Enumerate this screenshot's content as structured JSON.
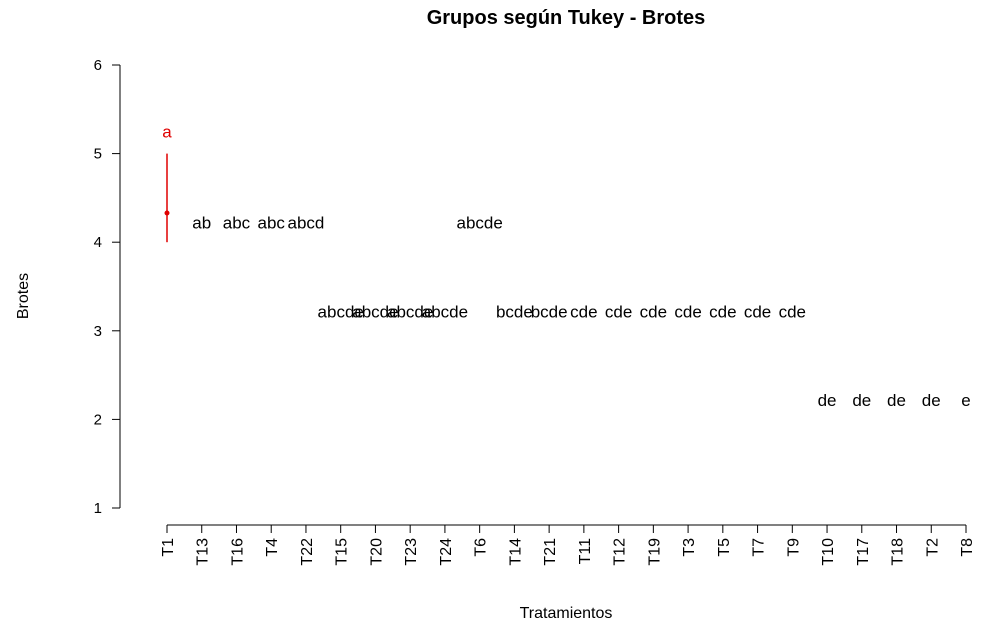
{
  "chart_data": {
    "type": "tukey-groups",
    "title": "Grupos según Tukey - Brotes",
    "x_label": "Tratamientos",
    "y_label": "Brotes",
    "categories": [
      "T1",
      "T13",
      "T16",
      "T4",
      "T22",
      "T15",
      "T20",
      "T23",
      "T24",
      "T6",
      "T14",
      "T21",
      "T11",
      "T12",
      "T19",
      "T3",
      "T5",
      "T7",
      "T9",
      "T10",
      "T17",
      "T18",
      "T2",
      "T8"
    ],
    "means": [
      4.33,
      null,
      null,
      null,
      null,
      null,
      null,
      null,
      null,
      null,
      null,
      null,
      null,
      null,
      null,
      null,
      null,
      null,
      null,
      null,
      null,
      null,
      null,
      null
    ],
    "lower": [
      4,
      null,
      null,
      null,
      null,
      null,
      null,
      null,
      null,
      null,
      null,
      null,
      null,
      null,
      null,
      null,
      null,
      null,
      null,
      null,
      null,
      null,
      null,
      null
    ],
    "upper": [
      5,
      null,
      null,
      null,
      null,
      null,
      null,
      null,
      null,
      null,
      null,
      null,
      null,
      null,
      null,
      null,
      null,
      null,
      null,
      null,
      null,
      null,
      null,
      null
    ],
    "groups": [
      "a",
      "ab",
      "abc",
      "abc",
      "abcd",
      "abcde",
      "abcde",
      "abcde",
      "abcde",
      "abcde",
      "bcde",
      "bcde",
      "cde",
      "cde",
      "cde",
      "cde",
      "cde",
      "cde",
      "cde",
      "de",
      "de",
      "de",
      "de",
      "e"
    ],
    "label_y": [
      5.25,
      4.22,
      4.22,
      4.22,
      4.22,
      3.22,
      3.22,
      3.22,
      3.22,
      4.22,
      3.22,
      3.22,
      3.22,
      3.22,
      3.22,
      3.22,
      3.22,
      3.22,
      3.22,
      2.22,
      2.22,
      2.22,
      2.22,
      2.22
    ],
    "highlight_color": "#e00000",
    "ylim": [
      1,
      6
    ],
    "yticks": [
      1,
      2,
      3,
      4,
      5,
      6
    ]
  }
}
